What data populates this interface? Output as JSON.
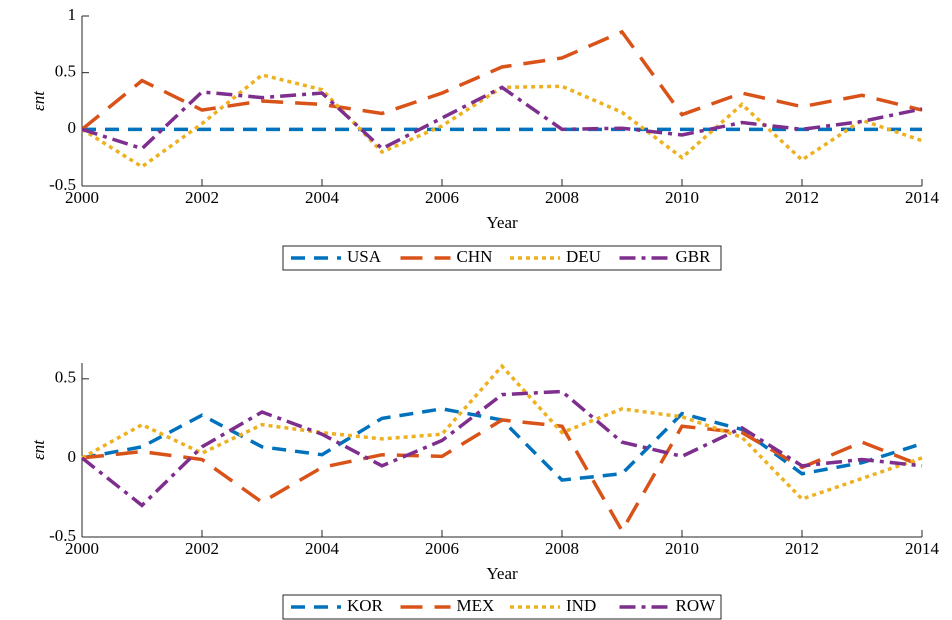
{
  "chart_data": [
    {
      "type": "line",
      "x_label": "Year",
      "y_label": "εnt",
      "x": [
        2000,
        2001,
        2002,
        2003,
        2004,
        2005,
        2006,
        2007,
        2008,
        2009,
        2010,
        2011,
        2012,
        2013,
        2014
      ],
      "xlim": [
        2000,
        2014
      ],
      "xticks": [
        2000,
        2002,
        2004,
        2006,
        2008,
        2010,
        2012,
        2014
      ],
      "ylim": [
        -0.5,
        1
      ],
      "yticks": [
        -0.5,
        0,
        0.5,
        1
      ],
      "series": [
        {
          "name": "USA",
          "color": "#0072bd",
          "dash": "dash",
          "values": [
            0,
            0,
            0,
            0,
            0,
            0,
            0,
            0,
            0,
            0,
            0,
            0,
            0,
            0,
            0
          ]
        },
        {
          "name": "CHN",
          "color": "#d95319",
          "dash": "longdash",
          "values": [
            0,
            0.43,
            0.17,
            0.25,
            0.22,
            0.14,
            0.32,
            0.55,
            0.63,
            0.86,
            0.13,
            0.32,
            0.2,
            0.3,
            0.17
          ]
        },
        {
          "name": "DEU",
          "color": "#edb120",
          "dash": "dot",
          "values": [
            0,
            -0.33,
            0.05,
            0.48,
            0.35,
            -0.2,
            0.03,
            0.37,
            0.38,
            0.15,
            -0.25,
            0.22,
            -0.27,
            0.08,
            -0.1
          ]
        },
        {
          "name": "GBR",
          "color": "#7e2f8e",
          "dash": "dashdot",
          "values": [
            0,
            -0.17,
            0.33,
            0.28,
            0.32,
            -0.17,
            0.1,
            0.37,
            0,
            0.01,
            -0.05,
            0.06,
            0,
            0.07,
            0.18
          ]
        }
      ]
    },
    {
      "type": "line",
      "x_label": "Year",
      "y_label": "εnt",
      "x": [
        2000,
        2001,
        2002,
        2003,
        2004,
        2005,
        2006,
        2007,
        2008,
        2009,
        2010,
        2011,
        2012,
        2013,
        2014
      ],
      "xlim": [
        2000,
        2014
      ],
      "xticks": [
        2000,
        2002,
        2004,
        2006,
        2008,
        2010,
        2012,
        2014
      ],
      "ylim": [
        -0.5,
        0.6
      ],
      "yticks": [
        -0.5,
        0,
        0.5
      ],
      "series": [
        {
          "name": "KOR",
          "color": "#0072bd",
          "dash": "dash",
          "values": [
            0,
            0.07,
            0.27,
            0.07,
            0.02,
            0.25,
            0.31,
            0.24,
            -0.14,
            -0.1,
            0.28,
            0.18,
            -0.1,
            -0.03,
            0.09
          ]
        },
        {
          "name": "MEX",
          "color": "#d95319",
          "dash": "longdash",
          "values": [
            0,
            0.04,
            -0.01,
            -0.28,
            -0.06,
            0.02,
            0.01,
            0.24,
            0.2,
            -0.46,
            0.2,
            0.16,
            -0.06,
            0.1,
            -0.05
          ]
        },
        {
          "name": "IND",
          "color": "#edb120",
          "dash": "dot",
          "values": [
            0,
            0.21,
            0.03,
            0.21,
            0.16,
            0.12,
            0.15,
            0.58,
            0.16,
            0.31,
            0.26,
            0.13,
            -0.26,
            -0.13,
            0
          ]
        },
        {
          "name": "ROW",
          "color": "#7e2f8e",
          "dash": "dashdot",
          "values": [
            0,
            -0.3,
            0.07,
            0.29,
            0.15,
            -0.05,
            0.11,
            0.4,
            0.42,
            0.1,
            0.01,
            0.19,
            -0.05,
            -0.01,
            -0.05
          ]
        }
      ]
    }
  ]
}
